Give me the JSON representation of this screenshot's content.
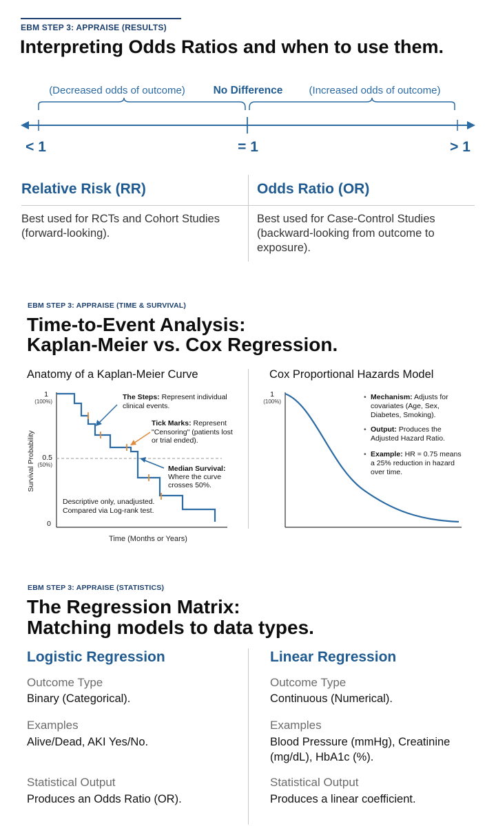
{
  "section1": {
    "eyebrow": "EBM STEP 3: APPRAISE (RESULTS)",
    "title": "Interpreting Odds Ratios and when to use them.",
    "scale": {
      "left_caption": "(Decreased odds of outcome)",
      "center_caption": "No Difference",
      "right_caption": "(Increased odds of outcome)",
      "left_tick": "< 1",
      "center_tick": "= 1",
      "right_tick": "> 1"
    },
    "rr": {
      "title": "Relative Risk (RR)",
      "text": "Best used for RCTs and Cohort Studies (forward-looking)."
    },
    "or": {
      "title": "Odds Ratio (OR)",
      "text": "Best used for Case-Control Studies (backward-looking from outcome to exposure)."
    }
  },
  "section2": {
    "eyebrow": "EBM STEP 3: APPRAISE (TIME & SURVIVAL)",
    "title_line1": "Time-to-Event Analysis:",
    "title_line2": "Kaplan-Meier vs. Cox Regression.",
    "km": {
      "title": "Anatomy of a Kaplan-Meier Curve",
      "y_axis_label": "Survival Probability",
      "x_axis_label": "Time (Months or Years)",
      "y_ticks": [
        {
          "value": "1",
          "sub": "(100%)"
        },
        {
          "value": "0.5",
          "sub": "(50%)"
        },
        {
          "value": "0",
          "sub": ""
        }
      ],
      "ann_steps_bold": "The Steps:",
      "ann_steps_line1": " Represent individual",
      "ann_steps_line2": "clinical events.",
      "ann_ticks_bold": "Tick Marks:",
      "ann_ticks_line1": " Represent",
      "ann_ticks_line2": "\"Censoring\" (patients lost",
      "ann_ticks_line3": "or trial ended).",
      "ann_median_bold": "Median Survival:",
      "ann_median_line2": "Where the curve",
      "ann_median_line3": "crosses 50%.",
      "note_line1": "Descriptive only, unadjusted.",
      "note_line2": "Compared via Log-rank test."
    },
    "cox": {
      "title": "Cox Proportional Hazards Model",
      "y_tick_value": "1",
      "y_tick_sub": "(100%)",
      "bullets": [
        {
          "bold": "Mechanism:",
          "line1": " Adjusts for",
          "line2": "covariates (Age, Sex,",
          "line3": "Diabetes, Smoking)."
        },
        {
          "bold": "Output:",
          "line1": " Produces the",
          "line2": "Adjusted Hazard Ratio.",
          "line3": ""
        },
        {
          "bold": "Example:",
          "line1": " HR = 0.75 means",
          "line2": "a 25% reduction in hazard",
          "line3": "over time."
        }
      ]
    }
  },
  "section3": {
    "eyebrow": "EBM STEP 3: APPRAISE (STATISTICS)",
    "title_line1": "The Regression Matrix:",
    "title_line2": "Matching models to data types.",
    "logistic": {
      "title": "Logistic Regression",
      "outcome_label": "Outcome Type",
      "outcome_value": "Binary (Categorical).",
      "examples_label": "Examples",
      "examples_value": "Alive/Dead, AKI Yes/No.",
      "output_label": "Statistical Output",
      "output_value": "Produces an Odds Ratio (OR)."
    },
    "linear": {
      "title": "Linear Regression",
      "outcome_label": "Outcome Type",
      "outcome_value": "Continuous (Numerical).",
      "examples_label": "Examples",
      "examples_value": "Blood Pressure (mmHg), Creatinine (mg/dL), HbA1c (%).",
      "output_label": "Statistical Output",
      "output_value": "Produces a linear coefficient."
    }
  },
  "colors": {
    "navy": "#1b3f6e",
    "blue": "#1f5b91",
    "line_blue": "#2b6aa3",
    "censor_orange": "#e08a3a"
  }
}
